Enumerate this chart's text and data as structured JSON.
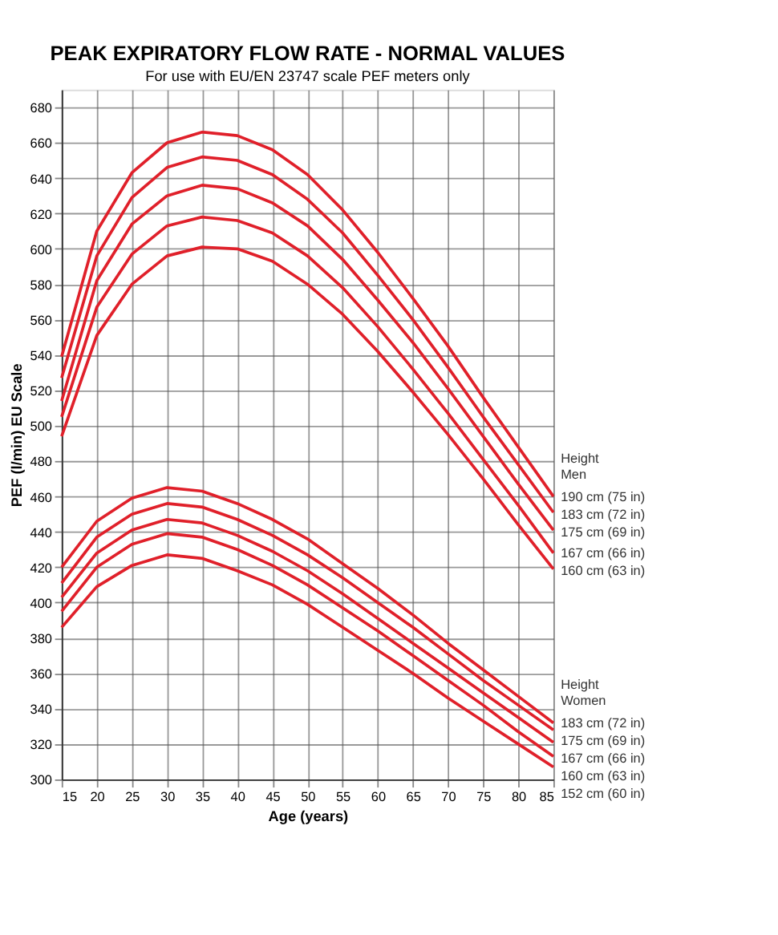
{
  "chart_data": {
    "type": "line",
    "title": "PEAK EXPIRATORY FLOW RATE - NORMAL VALUES",
    "subtitle": "For use with EU/EN 23747 scale PEF meters only",
    "xlabel": "Age (years)",
    "ylabel": "PEF (l/min) EU Scale",
    "x": [
      15,
      20,
      25,
      30,
      35,
      40,
      45,
      50,
      55,
      60,
      65,
      70,
      75,
      80,
      85
    ],
    "series": [
      {
        "name": "190 cm (75 in)",
        "color": "#e0202a",
        "values": [
          539,
          610,
          643,
          660,
          666,
          664,
          656,
          642,
          622,
          598,
          572,
          545,
          516,
          488,
          460
        ]
      },
      {
        "name": "183 cm (72 in)",
        "color": "#e0202a",
        "values": [
          527,
          596,
          629,
          646,
          652,
          650,
          642,
          628,
          609,
          585,
          560,
          533,
          505,
          478,
          451
        ]
      },
      {
        "name": "175 cm (69 in)",
        "color": "#e0202a",
        "values": [
          514,
          582,
          614,
          630,
          636,
          634,
          626,
          613,
          594,
          571,
          547,
          521,
          494,
          467,
          441
        ]
      },
      {
        "name": "167 cm (66 in)",
        "color": "#e0202a",
        "values": [
          505,
          567,
          597,
          613,
          618,
          616,
          609,
          596,
          578,
          556,
          532,
          507,
          481,
          455,
          428
        ]
      },
      {
        "name": "160 cm (63 in)",
        "color": "#e0202a",
        "values": [
          494,
          551,
          580,
          596,
          601,
          600,
          593,
          580,
          563,
          542,
          519,
          495,
          470,
          444,
          419
        ]
      },
      {
        "name": "183 cm (72 in)",
        "color": "#e0202a",
        "values": [
          420,
          446,
          459,
          465,
          463,
          456,
          447,
          436,
          422,
          408,
          393,
          377,
          362,
          347,
          332
        ]
      },
      {
        "name": "175 cm (69 in)",
        "color": "#e0202a",
        "values": [
          411,
          437,
          450,
          456,
          454,
          447,
          438,
          427,
          414,
          400,
          386,
          371,
          356,
          342,
          328
        ]
      },
      {
        "name": "167 cm (66 in)",
        "color": "#e0202a",
        "values": [
          403,
          428,
          441,
          447,
          445,
          438,
          429,
          418,
          405,
          391,
          377,
          363,
          349,
          335,
          321
        ]
      },
      {
        "name": "160 cm (63 in)",
        "color": "#e0202a",
        "values": [
          395,
          420,
          433,
          439,
          437,
          430,
          421,
          410,
          397,
          384,
          370,
          356,
          342,
          327,
          313
        ]
      },
      {
        "name": "152 cm (60 in)",
        "color": "#e0202a",
        "values": [
          386,
          409,
          421,
          427,
          425,
          418,
          410,
          399,
          386,
          373,
          360,
          346,
          333,
          320,
          307
        ]
      }
    ],
    "annotations": [
      "Height\nMen",
      "Height\nWomen"
    ],
    "xlim": [
      15,
      85
    ],
    "xticks": [
      15,
      20,
      25,
      30,
      35,
      40,
      45,
      50,
      55,
      60,
      65,
      70,
      75,
      80,
      85
    ],
    "ylim": [
      300,
      690
    ],
    "yticks": [
      300,
      320,
      340,
      360,
      380,
      400,
      420,
      440,
      460,
      480,
      500,
      520,
      540,
      560,
      580,
      600,
      620,
      640,
      660,
      680
    ],
    "grid": true,
    "marker": "none",
    "line_style": "solid"
  }
}
